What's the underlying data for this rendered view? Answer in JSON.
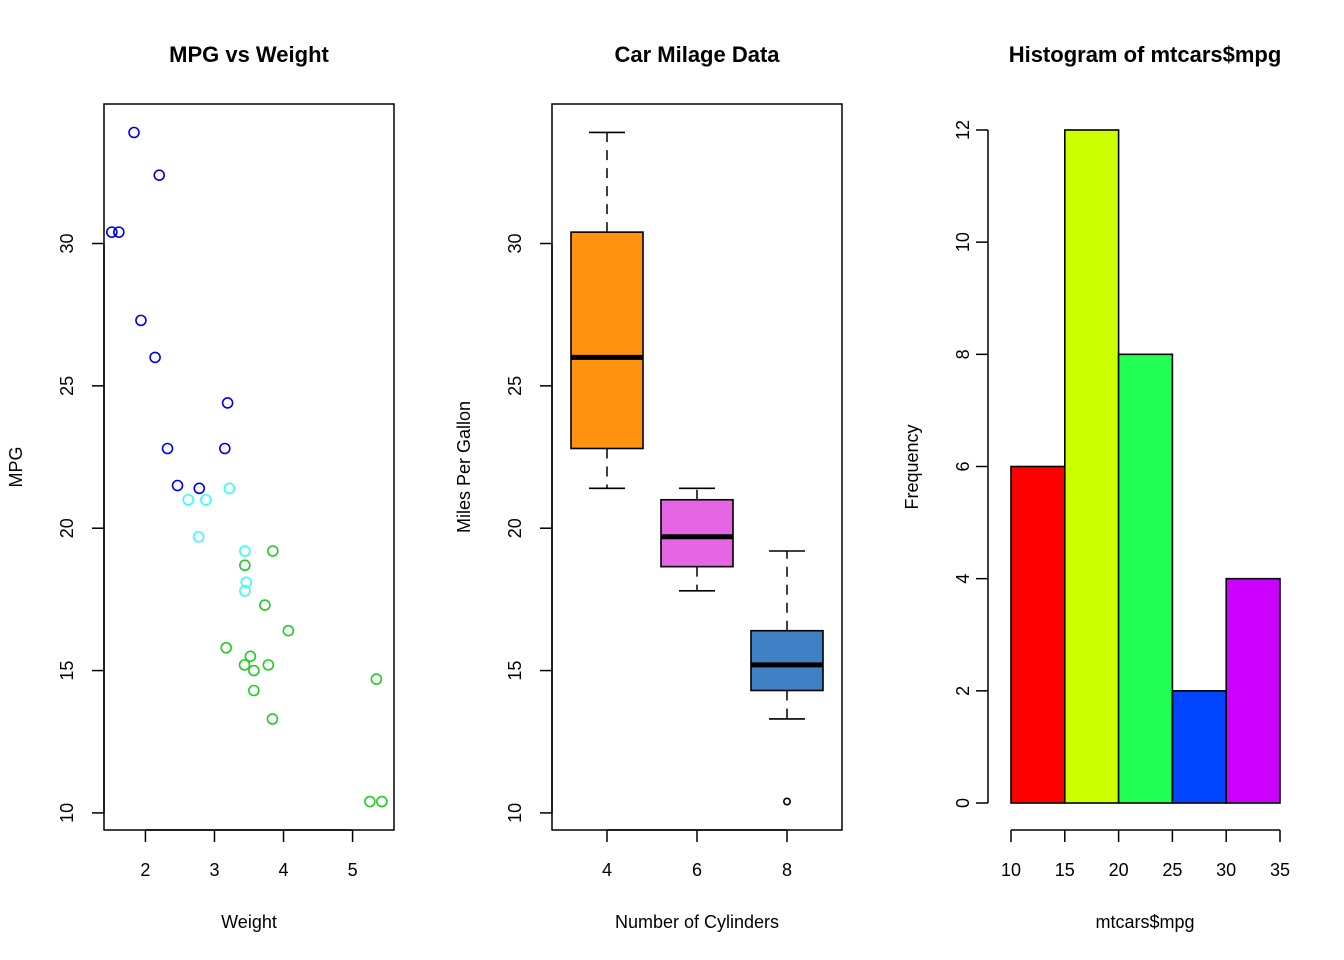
{
  "colors": {
    "scatter_cyl4": "#0000ee",
    "scatter_cyl6": "#33ffff",
    "scatter_cyl8": "#22cc22",
    "box_4": "#ff9310",
    "box_6": "#e466e4",
    "box_8": "#4080c4",
    "hist": [
      "#ff0000",
      "#ccff00",
      "#22ff55",
      "#0044ff",
      "#cc00ff"
    ]
  },
  "chart_data": [
    {
      "type": "scatter",
      "title": "MPG vs Weight",
      "xlabel": "Weight",
      "ylabel": "MPG",
      "xlim": [
        1.4,
        5.6
      ],
      "ylim": [
        9.4,
        34.9
      ],
      "xticks": [
        "2",
        "3",
        "4",
        "5"
      ],
      "yticks": [
        "10",
        "15",
        "20",
        "25",
        "30"
      ],
      "grid": false,
      "series": [
        {
          "color_key": "scatter_cyl4",
          "x": [
            2.32,
            3.19,
            3.15,
            2.2,
            1.615,
            1.835,
            2.465,
            1.935,
            2.14,
            1.513,
            2.78
          ],
          "y": [
            22.8,
            24.4,
            22.8,
            32.4,
            30.4,
            33.9,
            21.5,
            27.3,
            26.0,
            30.4,
            21.4
          ]
        },
        {
          "color_key": "scatter_cyl6",
          "x": [
            2.62,
            2.875,
            3.215,
            3.46,
            3.44,
            3.44,
            2.77
          ],
          "y": [
            21.0,
            21.0,
            21.4,
            18.1,
            19.2,
            17.8,
            19.7
          ]
        },
        {
          "color_key": "scatter_cyl8",
          "x": [
            3.44,
            3.57,
            4.07,
            3.73,
            3.78,
            5.25,
            5.424,
            5.345,
            3.52,
            3.435,
            3.84,
            3.845,
            3.17,
            3.57
          ],
          "y": [
            18.7,
            14.3,
            16.4,
            17.3,
            15.2,
            10.4,
            10.4,
            14.7,
            15.5,
            15.2,
            13.3,
            19.2,
            15.8,
            15.0
          ]
        }
      ]
    },
    {
      "type": "box",
      "title": "Car Milage Data",
      "xlabel": "Number of Cylinders",
      "ylabel": "Miles Per Gallon",
      "ylim": [
        9.4,
        34.9
      ],
      "yticks": [
        "10",
        "15",
        "20",
        "25",
        "30"
      ],
      "categories": [
        "4",
        "6",
        "8"
      ],
      "boxes": [
        {
          "color_key": "box_4",
          "whisker_low": 21.4,
          "q1": 22.8,
          "median": 26.0,
          "q3": 30.4,
          "whisker_high": 33.9,
          "outliers": []
        },
        {
          "color_key": "box_6",
          "whisker_low": 17.8,
          "q1": 18.65,
          "median": 19.7,
          "q3": 21.0,
          "whisker_high": 21.4,
          "outliers": []
        },
        {
          "color_key": "box_8",
          "whisker_low": 13.3,
          "q1": 14.3,
          "median": 15.2,
          "q3": 16.4,
          "whisker_high": 19.2,
          "outliers": [
            10.4
          ]
        }
      ]
    },
    {
      "type": "bar",
      "title": "Histogram of mtcars$mpg",
      "xlabel": "mtcars$mpg",
      "ylabel": "Frequency",
      "bins": [
        [
          10,
          15
        ],
        [
          15,
          20
        ],
        [
          20,
          25
        ],
        [
          25,
          30
        ],
        [
          30,
          35
        ]
      ],
      "values": [
        6,
        12,
        8,
        2,
        4
      ],
      "xticks": [
        "10",
        "15",
        "20",
        "25",
        "30",
        "35"
      ],
      "yticks": [
        "0",
        "2",
        "4",
        "6",
        "8",
        "10",
        "12"
      ],
      "ylim": [
        0,
        12
      ]
    }
  ]
}
